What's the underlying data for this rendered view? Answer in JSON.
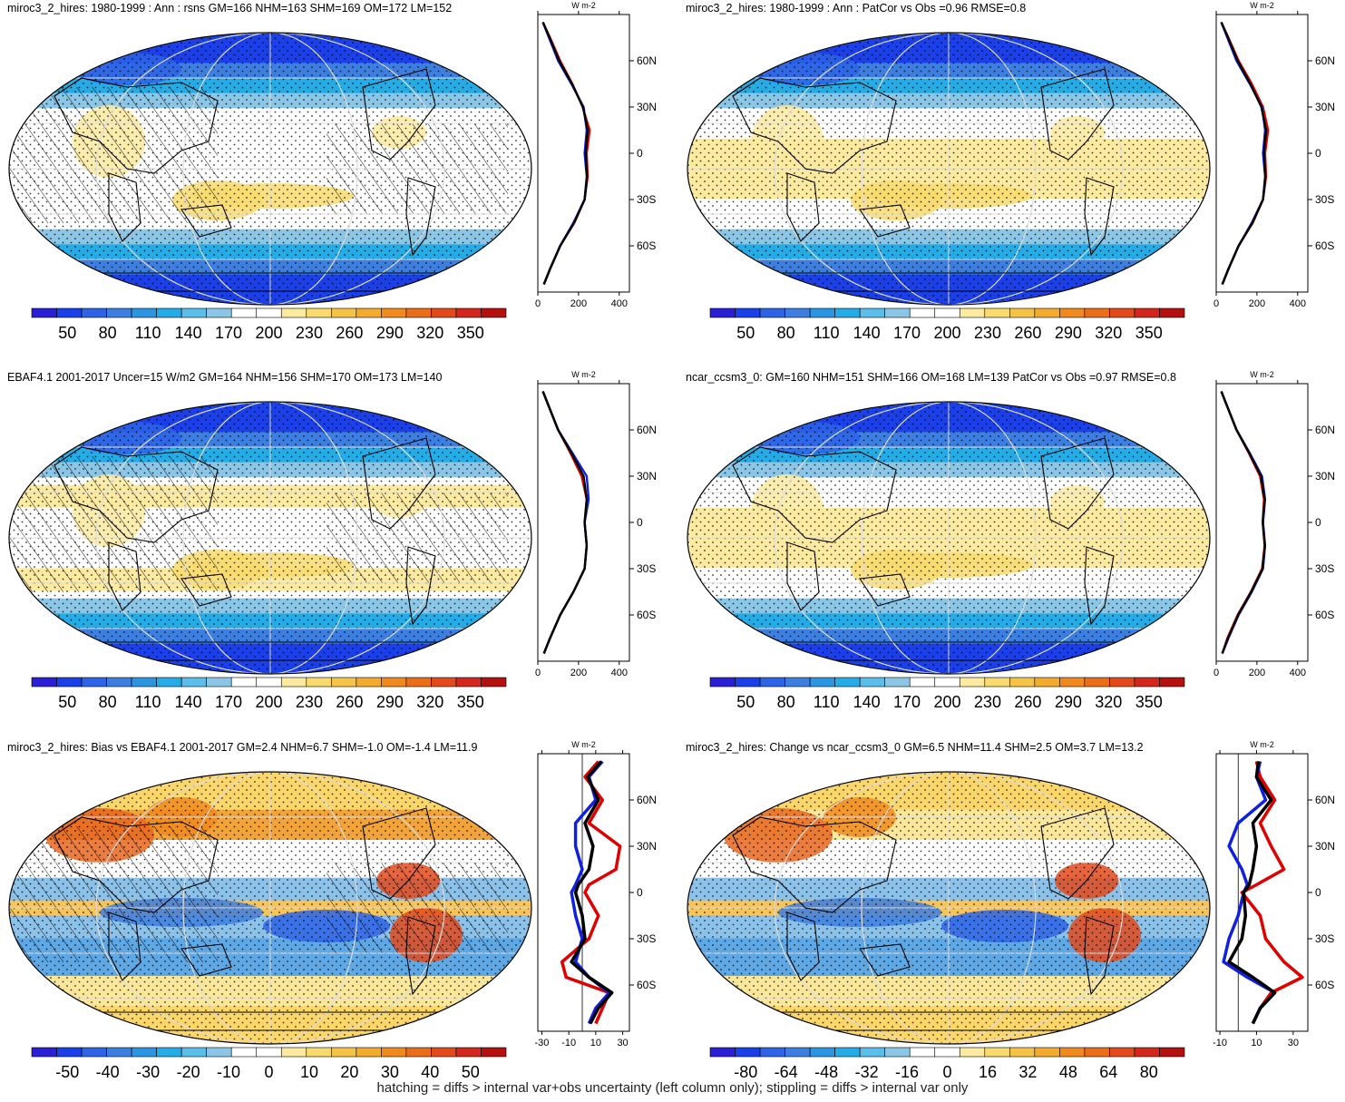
{
  "colors": {
    "scale": [
      "#2b1fd6",
      "#1b3fe8",
      "#2d63e6",
      "#3d7fe0",
      "#2b95e2",
      "#25ace6",
      "#5bbde9",
      "#8cc6e6",
      "#ffffff",
      "#ffffff",
      "#fbeaa0",
      "#f8da6e",
      "#f5c447",
      "#f3ab2e",
      "#f08a1e",
      "#ea6d1a",
      "#e24a1c",
      "#d3261c",
      "#b4100f"
    ],
    "model_line": "#e00000",
    "obs_line": "#1020e0",
    "ref_line": "#000000",
    "coast": "#000000"
  },
  "footnote": "hatching = diffs > internal var+obs uncertainty (left column only); stippling = diffs > internal var only",
  "chart_data": [
    {
      "type": "heatmap",
      "title": "miroc3_2_hires: 1980-1999 : Ann : rsns GM=166 NHM=163 SHM=169 OM=172 LM=152",
      "field": "absolute",
      "colorbar_ticks": [
        "50",
        "80",
        "110",
        "140",
        "170",
        "200",
        "230",
        "260",
        "290",
        "320",
        "350"
      ],
      "hatching": true,
      "profile": {
        "units": "W m-2",
        "xticks": [
          "0",
          "200",
          "400"
        ],
        "xlim": [
          0,
          450
        ],
        "yticks": [
          "60N",
          "30N",
          "0",
          "30S",
          "60S"
        ],
        "series": [
          {
            "role": "model",
            "lat": [
              85,
              75,
              60,
              45,
              30,
              15,
              0,
              -15,
              -30,
              -45,
              -60,
              -75,
              -85
            ],
            "values": [
              25,
              60,
              110,
              170,
              220,
              255,
              240,
              245,
              230,
              180,
              110,
              60,
              30
            ]
          },
          {
            "role": "obs",
            "lat": [
              85,
              75,
              60,
              45,
              30,
              15,
              0,
              -15,
              -30,
              -45,
              -60,
              -75,
              -85
            ],
            "values": [
              25,
              55,
              100,
              165,
              225,
              240,
              230,
              240,
              230,
              175,
              110,
              60,
              30
            ]
          },
          {
            "role": "ref",
            "lat": [
              85,
              75,
              60,
              45,
              30,
              15,
              0,
              -15,
              -30,
              -45,
              -60,
              -75,
              -85
            ],
            "values": [
              25,
              58,
              105,
              168,
              222,
              245,
              235,
              242,
              230,
              178,
              110,
              60,
              30
            ]
          }
        ]
      }
    },
    {
      "type": "heatmap",
      "title": "miroc3_2_hires: 1980-1999 : Ann : PatCor vs Obs =0.96 RMSE=0.8",
      "field": "absolute",
      "colorbar_ticks": [
        "50",
        "80",
        "110",
        "140",
        "170",
        "200",
        "230",
        "260",
        "290",
        "320",
        "350"
      ],
      "hatching": false,
      "profile": {
        "units": "W m-2",
        "xticks": [
          "0",
          "200",
          "400"
        ],
        "xlim": [
          0,
          450
        ],
        "yticks": [
          "60N",
          "30N",
          "0",
          "30S",
          "60S"
        ],
        "series": [
          {
            "role": "model",
            "lat": [
              85,
              75,
              60,
              45,
              30,
              15,
              0,
              -15,
              -30,
              -45,
              -60,
              -75,
              -85
            ],
            "values": [
              25,
              60,
              110,
              175,
              230,
              255,
              240,
              245,
              230,
              180,
              110,
              60,
              30
            ]
          },
          {
            "role": "obs",
            "lat": [
              85,
              75,
              60,
              45,
              30,
              15,
              0,
              -15,
              -30,
              -45,
              -60,
              -75,
              -85
            ],
            "values": [
              25,
              55,
              100,
              165,
              225,
              240,
              230,
              240,
              230,
              175,
              110,
              60,
              30
            ]
          },
          {
            "role": "ref",
            "lat": [
              85,
              75,
              60,
              45,
              30,
              15,
              0,
              -15,
              -30,
              -45,
              -60,
              -75,
              -85
            ],
            "values": [
              25,
              58,
              105,
              168,
              222,
              245,
              235,
              242,
              230,
              178,
              110,
              60,
              30
            ]
          }
        ]
      }
    },
    {
      "type": "heatmap",
      "title": "EBAF4.1 2001-2017 Uncer=15 W/m2 GM=164 NHM=156 SHM=170 OM=173 LM=140",
      "field": "absolute",
      "colorbar_ticks": [
        "50",
        "80",
        "110",
        "140",
        "170",
        "200",
        "230",
        "260",
        "290",
        "320",
        "350"
      ],
      "hatching": true,
      "profile": {
        "units": "W m-2",
        "xticks": [
          "0",
          "200",
          "400"
        ],
        "xlim": [
          0,
          450
        ],
        "yticks": [
          "60N",
          "30N",
          "0",
          "30S",
          "60S"
        ],
        "series": [
          {
            "role": "model",
            "lat": [
              85,
              75,
              60,
              45,
              30,
              15,
              0,
              -15,
              -30,
              -45,
              -60,
              -75,
              -85
            ],
            "values": [
              25,
              55,
              100,
              160,
              215,
              240,
              230,
              240,
              230,
              175,
              110,
              60,
              30
            ]
          },
          {
            "role": "obs",
            "lat": [
              85,
              75,
              60,
              45,
              30,
              15,
              0,
              -15,
              -30,
              -45,
              -60,
              -75,
              -85
            ],
            "values": [
              25,
              55,
              100,
              170,
              240,
              250,
              230,
              240,
              230,
              175,
              110,
              60,
              30
            ]
          },
          {
            "role": "ref",
            "lat": [
              85,
              75,
              60,
              45,
              30,
              15,
              0,
              -15,
              -30,
              -45,
              -60,
              -75,
              -85
            ],
            "values": [
              25,
              55,
              100,
              165,
              225,
              240,
              230,
              240,
              230,
              175,
              110,
              60,
              30
            ]
          }
        ]
      }
    },
    {
      "type": "heatmap",
      "title": "ncar_ccsm3_0: GM=160 NHM=151 SHM=166 OM=168 LM=139 PatCor vs Obs =0.97 RMSE=0.8",
      "field": "absolute",
      "colorbar_ticks": [
        "50",
        "80",
        "110",
        "140",
        "170",
        "200",
        "230",
        "260",
        "290",
        "320",
        "350"
      ],
      "hatching": false,
      "profile": {
        "units": "W m-2",
        "xticks": [
          "0",
          "200",
          "400"
        ],
        "xlim": [
          0,
          450
        ],
        "yticks": [
          "60N",
          "30N",
          "0",
          "30S",
          "60S"
        ],
        "series": [
          {
            "role": "model",
            "lat": [
              85,
              75,
              60,
              45,
              30,
              15,
              0,
              -15,
              -30,
              -45,
              -60,
              -75,
              -85
            ],
            "values": [
              25,
              55,
              100,
              160,
              215,
              235,
              228,
              238,
              225,
              170,
              105,
              55,
              30
            ]
          },
          {
            "role": "obs",
            "lat": [
              85,
              75,
              60,
              45,
              30,
              15,
              0,
              -15,
              -30,
              -45,
              -60,
              -75,
              -85
            ],
            "values": [
              25,
              55,
              100,
              165,
              225,
              240,
              230,
              240,
              230,
              175,
              110,
              60,
              30
            ]
          },
          {
            "role": "ref",
            "lat": [
              85,
              75,
              60,
              45,
              30,
              15,
              0,
              -15,
              -30,
              -45,
              -60,
              -75,
              -85
            ],
            "values": [
              25,
              55,
              100,
              162,
              220,
              238,
              229,
              239,
              228,
              172,
              108,
              58,
              30
            ]
          }
        ]
      }
    },
    {
      "type": "heatmap",
      "title": "miroc3_2_hires: Bias vs EBAF4.1 2001-2017 GM=2.4 NHM=6.7 SHM=-1.0 OM=-1.4 LM=11.9",
      "field": "difference",
      "colorbar_ticks": [
        "-50",
        "-40",
        "-30",
        "-20",
        "-10",
        "0",
        "10",
        "20",
        "30",
        "40",
        "50"
      ],
      "hatching": true,
      "profile": {
        "units": "W m-2",
        "xticks": [
          "-30",
          "-10",
          "10",
          "30"
        ],
        "xlim": [
          -33,
          35
        ],
        "yticks": [
          "60N",
          "30N",
          "0",
          "30S",
          "60S"
        ],
        "series": [
          {
            "role": "model",
            "lat": [
              85,
              75,
              60,
              45,
              30,
              15,
              5,
              0,
              -15,
              -30,
              -45,
              -55,
              -65,
              -75,
              -85
            ],
            "values": [
              12,
              2,
              15,
              5,
              28,
              25,
              5,
              2,
              12,
              5,
              -15,
              -12,
              20,
              15,
              10
            ]
          },
          {
            "role": "obs",
            "lat": [
              85,
              75,
              60,
              45,
              30,
              15,
              5,
              0,
              -15,
              -30,
              -45,
              -55,
              -65,
              -75,
              -85
            ],
            "values": [
              15,
              5,
              10,
              -5,
              -5,
              0,
              -5,
              -8,
              -5,
              0,
              -5,
              5,
              20,
              10,
              5
            ]
          },
          {
            "role": "ref",
            "lat": [
              85,
              75,
              60,
              45,
              30,
              15,
              5,
              0,
              -15,
              -30,
              -45,
              -55,
              -65,
              -75,
              -85
            ],
            "values": [
              14,
              4,
              12,
              2,
              8,
              5,
              -3,
              -5,
              0,
              2,
              -8,
              5,
              22,
              12,
              6
            ]
          }
        ]
      }
    },
    {
      "type": "heatmap",
      "title": "miroc3_2_hires: Change vs ncar_ccsm3_0 GM=6.5 NHM=11.4 SHM=2.5 OM=3.7 LM=13.2",
      "field": "difference",
      "colorbar_ticks": [
        "-80",
        "-64",
        "-48",
        "-32",
        "-16",
        "0",
        "16",
        "32",
        "48",
        "64",
        "80"
      ],
      "hatching": false,
      "profile": {
        "units": "W m-2",
        "xticks": [
          "-10",
          "10",
          "30"
        ],
        "xlim": [
          -12,
          38
        ],
        "yticks": [
          "60N",
          "30N",
          "0",
          "30S",
          "60S"
        ],
        "series": [
          {
            "role": "model",
            "lat": [
              85,
              75,
              60,
              45,
              30,
              15,
              5,
              0,
              -15,
              -30,
              -45,
              -55,
              -65,
              -75,
              -85
            ],
            "values": [
              10,
              12,
              20,
              12,
              18,
              25,
              10,
              2,
              12,
              15,
              25,
              35,
              18,
              12,
              8
            ]
          },
          {
            "role": "obs",
            "lat": [
              85,
              75,
              60,
              45,
              30,
              15,
              5,
              0,
              -15,
              -30,
              -45,
              -55,
              -65,
              -75,
              -85
            ],
            "values": [
              12,
              10,
              15,
              0,
              -5,
              2,
              5,
              3,
              0,
              -5,
              -8,
              5,
              20,
              12,
              8
            ]
          },
          {
            "role": "ref",
            "lat": [
              85,
              75,
              60,
              45,
              30,
              15,
              5,
              0,
              -15,
              -30,
              -45,
              -55,
              -65,
              -75,
              -85
            ],
            "values": [
              11,
              10,
              18,
              8,
              10,
              8,
              6,
              3,
              4,
              2,
              -5,
              8,
              20,
              12,
              8
            ]
          }
        ]
      }
    }
  ]
}
